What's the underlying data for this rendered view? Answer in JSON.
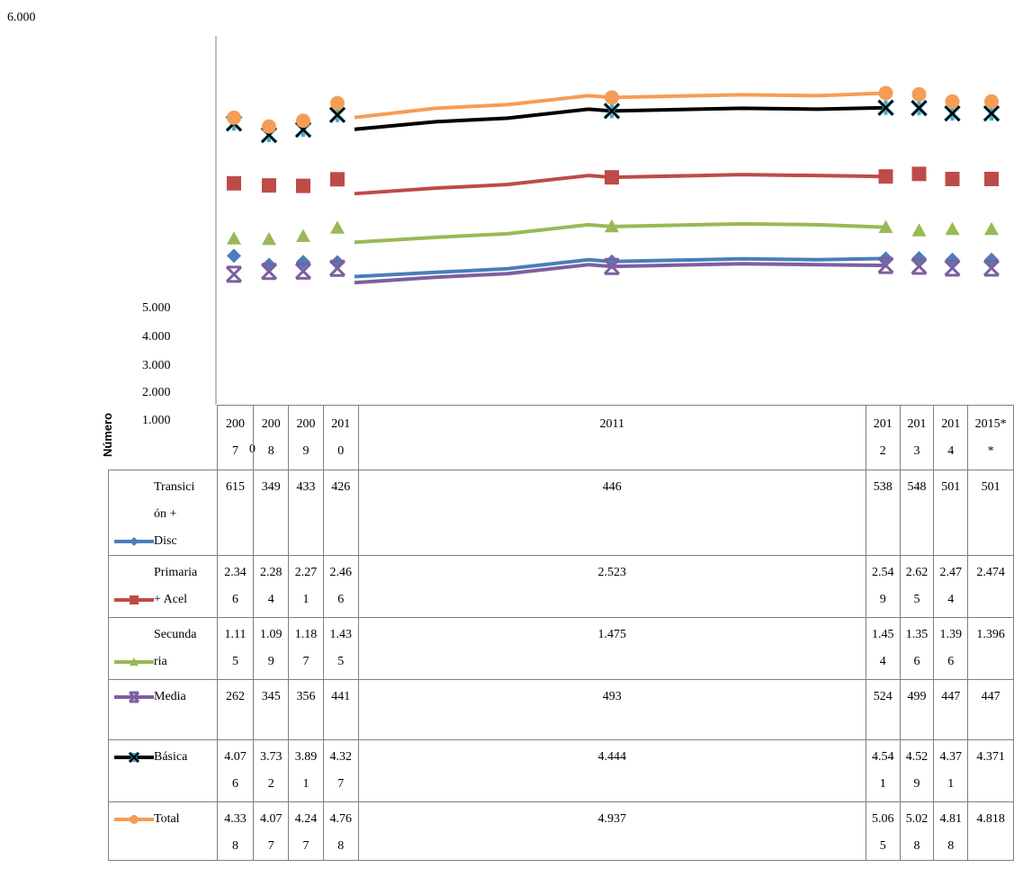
{
  "chart_data": {
    "type": "line",
    "ylabel": "Número",
    "y_ticks": [
      "6.000",
      "5.000",
      "4.000",
      "3.000",
      "2.000",
      "1.000",
      "0"
    ],
    "ylim": [
      0,
      6000
    ],
    "categories": [
      "200\n7",
      "200\n8",
      "200\n9",
      "201\n0",
      "2011",
      "201\n2",
      "201\n3",
      "201\n4",
      "2015*\n*"
    ],
    "category_names": [
      "2007",
      "2008",
      "2009",
      "2010",
      "2011",
      "2012",
      "2013",
      "2014",
      "2015**"
    ],
    "grid": false,
    "legend": "data-table",
    "series": [
      {
        "name": "Transición + Disc",
        "label": "Transici\nón +\nDisc",
        "color": "#4a7ebb",
        "marker": "diamond",
        "values": [
          615,
          349,
          433,
          426,
          446,
          538,
          548,
          501,
          501
        ],
        "display": [
          "615",
          "349",
          "433",
          "426",
          "446",
          "538",
          "548",
          "501",
          "501"
        ]
      },
      {
        "name": "Primaria + Acel",
        "label": "Primaria\n+ Acel",
        "color": "#be4b48",
        "marker": "square",
        "values": [
          2346,
          2284,
          2271,
          2466,
          2523,
          2549,
          2625,
          2474,
          2474
        ],
        "display": [
          "2.34\n6",
          "2.28\n4",
          "2.27\n1",
          "2.46\n6",
          "2.523",
          "2.54\n9",
          "2.62\n5",
          "2.47\n4",
          "2.474"
        ]
      },
      {
        "name": "Secundaria",
        "label": "Secunda\nria",
        "color": "#98b954",
        "marker": "triangle",
        "values": [
          1115,
          1099,
          1187,
          1435,
          1475,
          1454,
          1356,
          1396,
          1396
        ],
        "display": [
          "1.11\n5",
          "1.09\n9",
          "1.18\n7",
          "1.43\n5",
          "1.475",
          "1.45\n4",
          "1.35\n6",
          "1.39\n6",
          "1.396"
        ]
      },
      {
        "name": "Media",
        "label": "Media",
        "color": "#7d5fa0",
        "marker": "x",
        "values": [
          262,
          345,
          356,
          441,
          493,
          524,
          499,
          447,
          447
        ],
        "display": [
          "262",
          "345",
          "356",
          "441",
          "493",
          "524",
          "499",
          "447",
          "447"
        ]
      },
      {
        "name": "Básica",
        "label": "Básica",
        "color": "#000000",
        "marker": "star",
        "values": [
          4076,
          3732,
          3891,
          4327,
          4444,
          4541,
          4529,
          4371,
          4371
        ],
        "display": [
          "4.07\n6",
          "3.73\n2",
          "3.89\n1",
          "4.32\n7",
          "4.444",
          "4.54\n1",
          "4.52\n9",
          "4.37\n1",
          "4.371"
        ]
      },
      {
        "name": "Total",
        "label": "Total",
        "color": "#f59d56",
        "marker": "circle",
        "values": [
          4338,
          4077,
          4247,
          4768,
          4937,
          5065,
          5028,
          4818,
          4818
        ],
        "display": [
          "4.33\n8",
          "4.07\n7",
          "4.24\n7",
          "4.76\n8",
          "4.937",
          "5.06\n5",
          "5.02\n8",
          "4.81\n8",
          "4.818"
        ]
      }
    ]
  }
}
